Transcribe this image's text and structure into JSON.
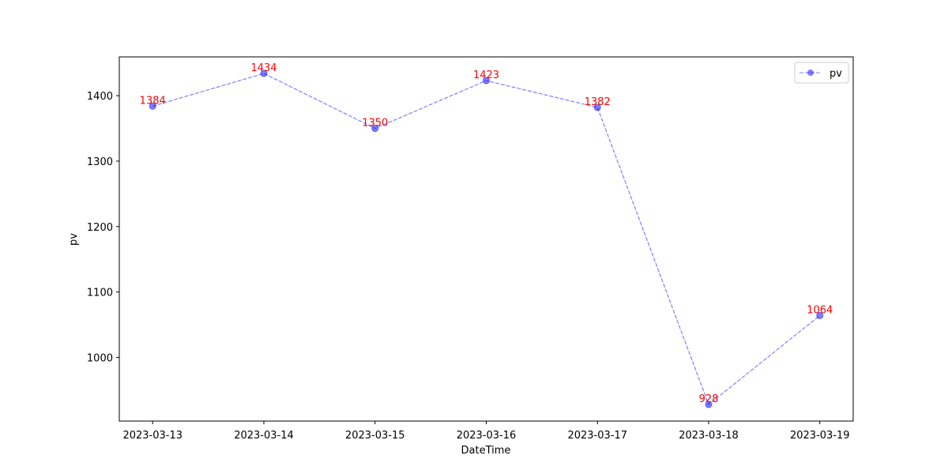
{
  "chart_data": {
    "type": "line",
    "xlabel": "DateTime",
    "ylabel": "pv",
    "categories": [
      "2023-03-13",
      "2023-03-14",
      "2023-03-15",
      "2023-03-16",
      "2023-03-17",
      "2023-03-18",
      "2023-03-19"
    ],
    "series": [
      {
        "name": "pv",
        "color": "#0000ff",
        "values": [
          1384,
          1434,
          1350,
          1423,
          1382,
          928,
          1064
        ]
      }
    ],
    "label_color": "#ff0000",
    "ylim": [
      902.7,
      1459.3
    ],
    "yticks": [
      1000,
      1100,
      1200,
      1300,
      1400
    ],
    "legend": "upper right"
  }
}
